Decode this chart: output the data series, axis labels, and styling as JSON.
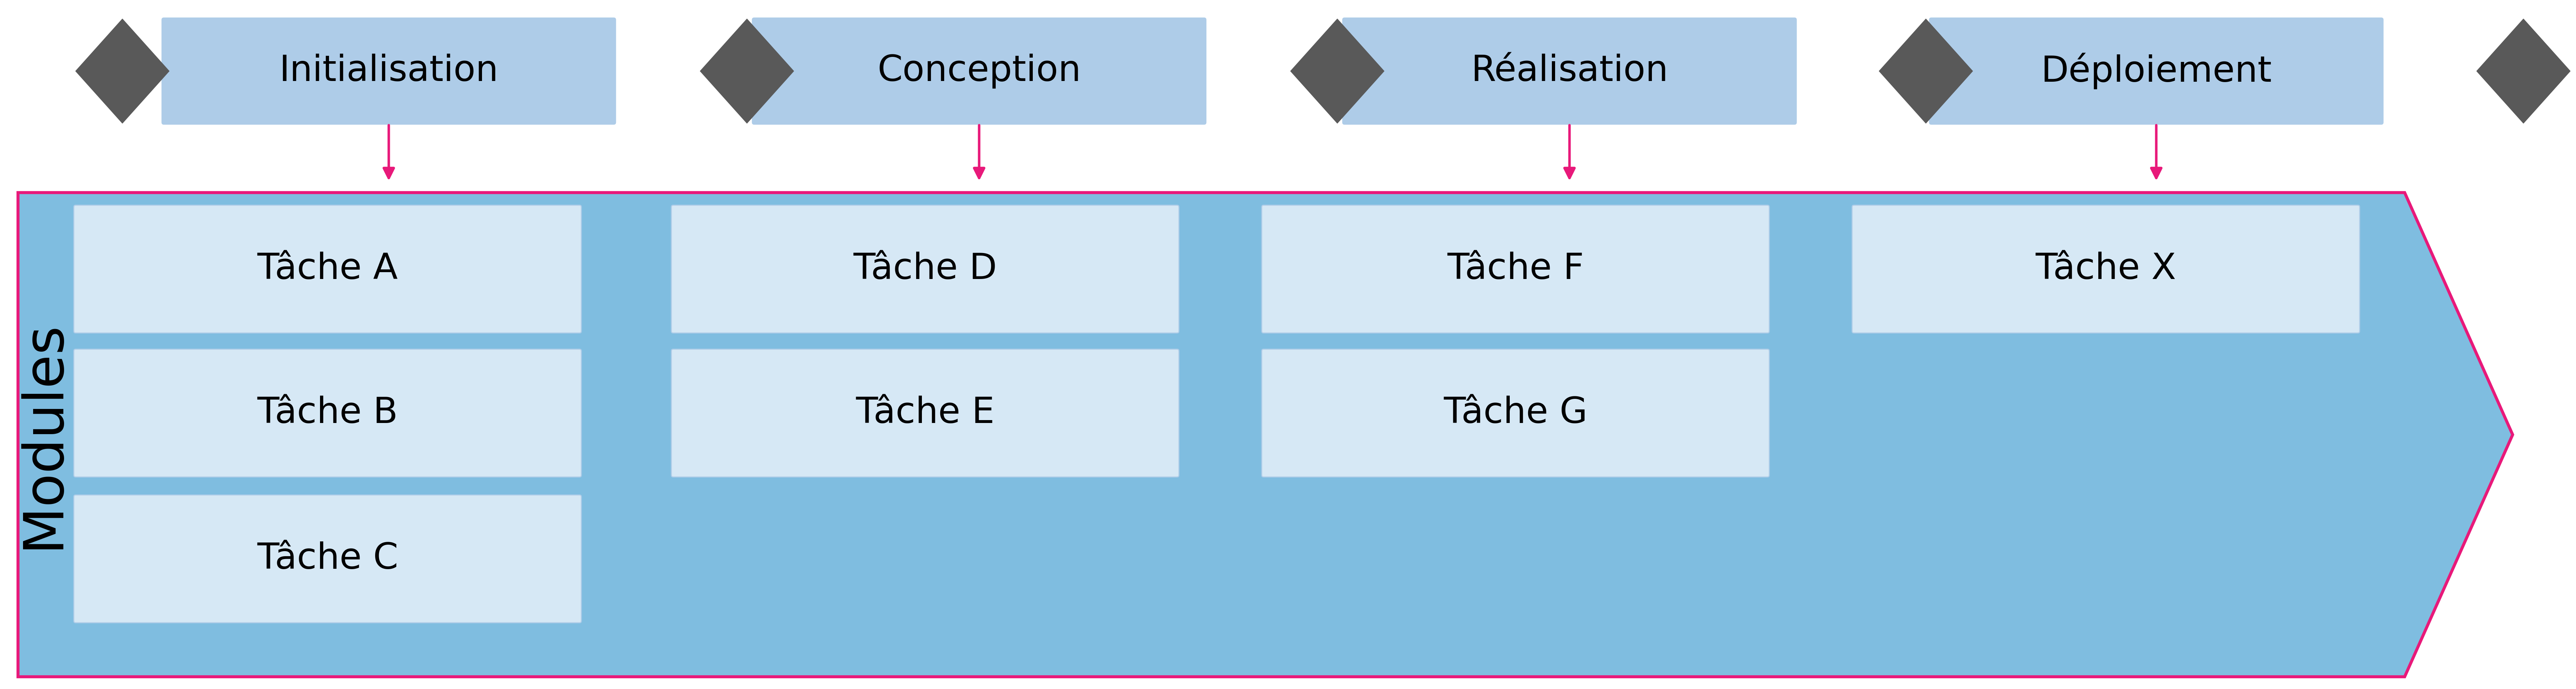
{
  "figsize": [
    71.57,
    19.14
  ],
  "dpi": 100,
  "bg_color": "#ffffff",
  "phase_labels": [
    "Initialisation",
    "Conception",
    "Réalisation",
    "Déploiement"
  ],
  "phase_box_color": "#aecce8",
  "phase_box_edge_color": "#aecce8",
  "phase_text_color": "#000000",
  "diamond_color": "#595959",
  "arrow_color": "#e8197a",
  "modules_arrow_fill": "#7fbde0",
  "modules_arrow_edge": "#e8197a",
  "task_box_fill": "#d6e8f5",
  "task_box_edge": "#aecce8",
  "modules_label": "Modules",
  "modules_label_color": "#000000",
  "tasks": [
    {
      "label": "Tâche A",
      "col": 0,
      "row": 0
    },
    {
      "label": "Tâche B",
      "col": 0,
      "row": 1
    },
    {
      "label": "Tâche C",
      "col": 0,
      "row": 2
    },
    {
      "label": "Tâche D",
      "col": 1,
      "row": 0
    },
    {
      "label": "Tâche E",
      "col": 1,
      "row": 1
    },
    {
      "label": "Tâche F",
      "col": 2,
      "row": 0
    },
    {
      "label": "Tâche G",
      "col": 2,
      "row": 1
    },
    {
      "label": "Tâche X",
      "col": 3,
      "row": 0
    }
  ]
}
